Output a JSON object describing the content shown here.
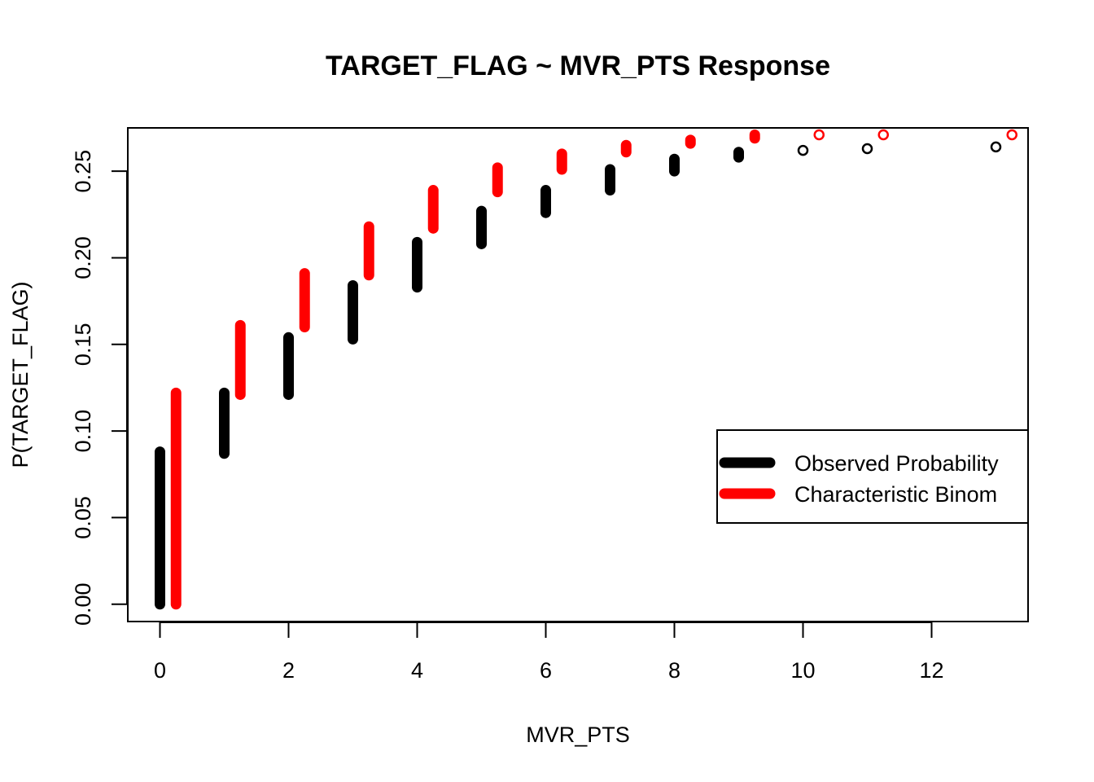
{
  "chart_data": {
    "type": "scatter",
    "title": "TARGET_FLAG ~ MVR_PTS Response",
    "xlabel": "MVR_PTS",
    "ylabel": "P(TARGET_FLAG)",
    "xlim": [
      -0.5,
      13.5
    ],
    "ylim": [
      -0.01,
      0.275
    ],
    "x_ticks": [
      "0",
      "2",
      "4",
      "6",
      "8",
      "10",
      "12"
    ],
    "y_ticks": [
      "0.00",
      "0.05",
      "0.10",
      "0.15",
      "0.20",
      "0.25"
    ],
    "grid": false,
    "legend_position": "right",
    "series": [
      {
        "name": "Observed Probability",
        "color": "#000000",
        "points": [
          {
            "x": 0,
            "ymin": 0.0,
            "ymax": 0.088
          },
          {
            "x": 1,
            "ymin": 0.087,
            "ymax": 0.122
          },
          {
            "x": 2,
            "ymin": 0.121,
            "ymax": 0.154
          },
          {
            "x": 3,
            "ymin": 0.153,
            "ymax": 0.184
          },
          {
            "x": 4,
            "ymin": 0.183,
            "ymax": 0.209
          },
          {
            "x": 5,
            "ymin": 0.208,
            "ymax": 0.227
          },
          {
            "x": 6,
            "ymin": 0.226,
            "ymax": 0.239
          },
          {
            "x": 7,
            "ymin": 0.239,
            "ymax": 0.251
          },
          {
            "x": 8,
            "ymin": 0.25,
            "ymax": 0.257
          },
          {
            "x": 9,
            "ymin": 0.258,
            "ymax": 0.261
          },
          {
            "x": 10,
            "ymin": 0.262,
            "ymax": 0.262
          },
          {
            "x": 11,
            "ymin": 0.263,
            "ymax": 0.263
          },
          {
            "x": 13,
            "ymin": 0.264,
            "ymax": 0.264
          }
        ]
      },
      {
        "name": "Characteristic Binom",
        "color": "#ff0000",
        "points": [
          {
            "x": 0.25,
            "ymin": 0.0,
            "ymax": 0.122
          },
          {
            "x": 1.25,
            "ymin": 0.121,
            "ymax": 0.161
          },
          {
            "x": 2.25,
            "ymin": 0.16,
            "ymax": 0.191
          },
          {
            "x": 3.25,
            "ymin": 0.19,
            "ymax": 0.218
          },
          {
            "x": 4.25,
            "ymin": 0.217,
            "ymax": 0.239
          },
          {
            "x": 5.25,
            "ymin": 0.238,
            "ymax": 0.252
          },
          {
            "x": 6.25,
            "ymin": 0.251,
            "ymax": 0.26
          },
          {
            "x": 7.25,
            "ymin": 0.261,
            "ymax": 0.265
          },
          {
            "x": 8.25,
            "ymin": 0.266,
            "ymax": 0.268
          },
          {
            "x": 9.25,
            "ymin": 0.269,
            "ymax": 0.271
          },
          {
            "x": 10.25,
            "ymin": 0.271,
            "ymax": 0.271
          },
          {
            "x": 11.25,
            "ymin": 0.271,
            "ymax": 0.271
          },
          {
            "x": 13.25,
            "ymin": 0.271,
            "ymax": 0.271
          }
        ]
      }
    ]
  }
}
